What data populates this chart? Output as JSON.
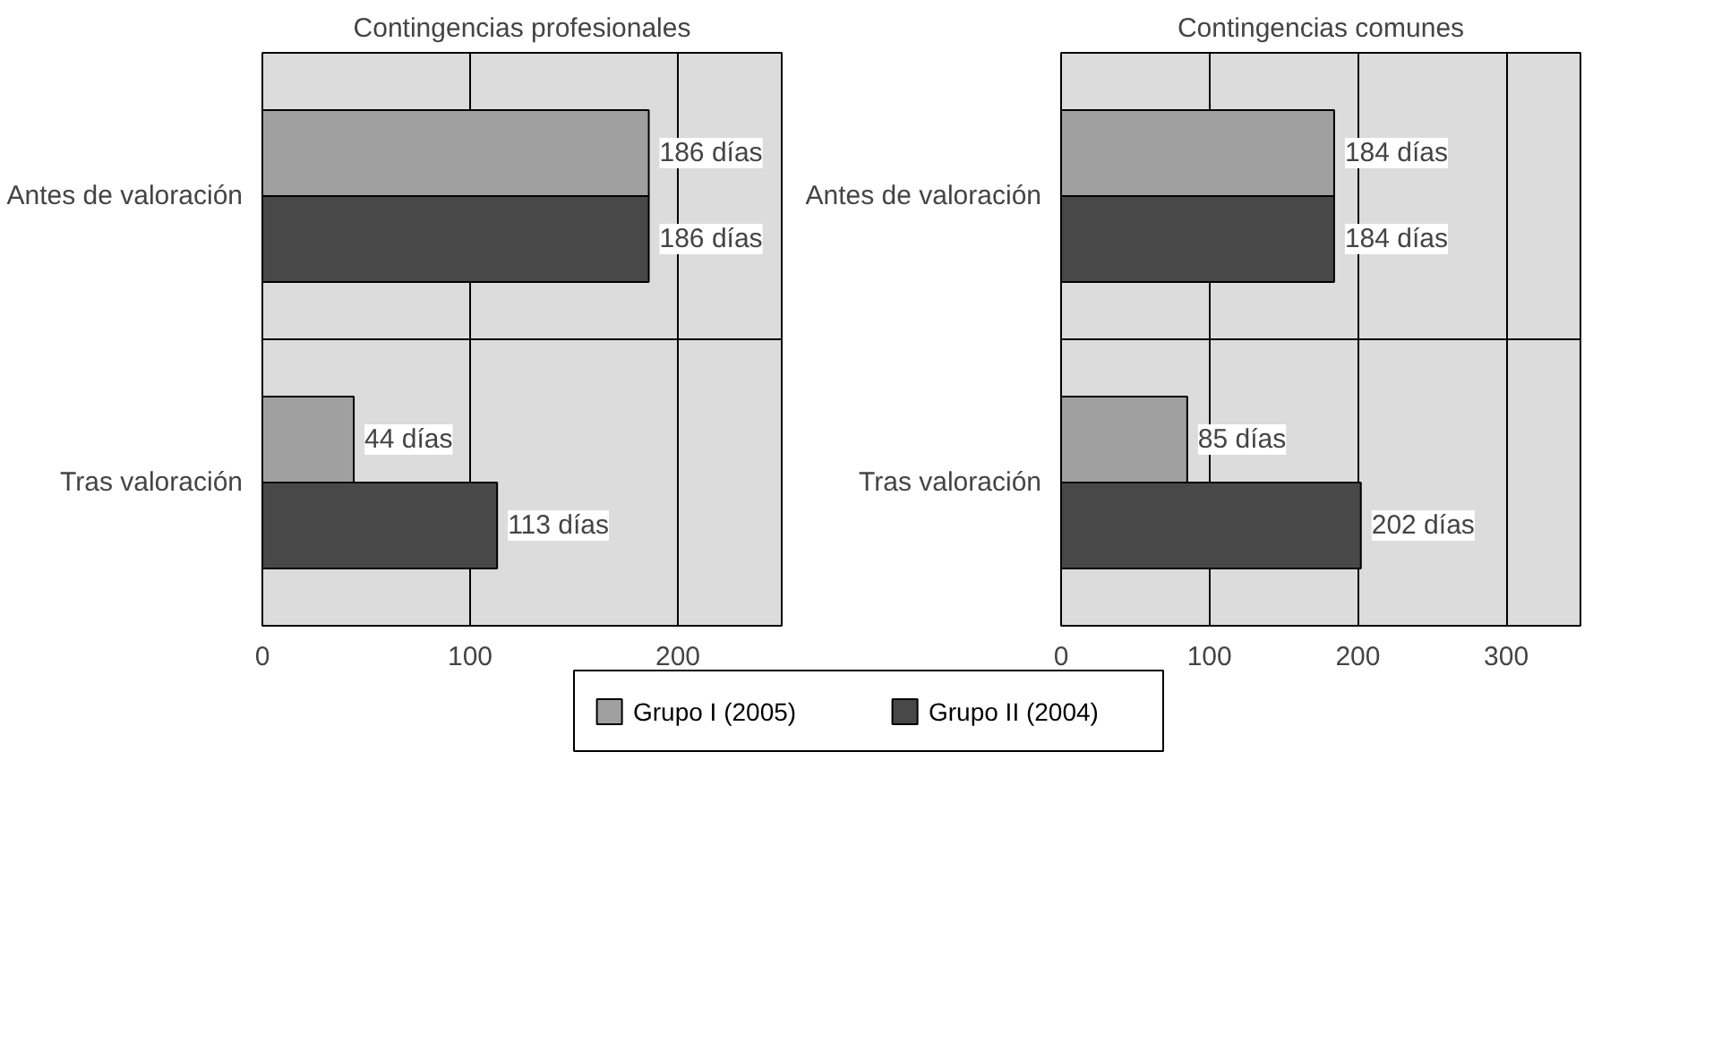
{
  "chart_data": [
    {
      "type": "bar",
      "orientation": "horizontal",
      "title": "Contingencias profesionales",
      "categories": [
        "Antes de valoración",
        "Tras valoración"
      ],
      "xlim": [
        0,
        250
      ],
      "xticks": [
        0,
        100,
        200
      ],
      "grid": "x",
      "series": [
        {
          "color": "#a0a0a0",
          "values": [
            186,
            44
          ],
          "value_labels": [
            "186 días",
            "44 días"
          ]
        },
        {
          "color": "#484848",
          "values": [
            186,
            113
          ],
          "value_labels": [
            "186 días",
            "113 días"
          ]
        }
      ]
    },
    {
      "type": "bar",
      "orientation": "horizontal",
      "title": "Contingencias comunes",
      "categories": [
        "Antes de valoración",
        "Tras valoración"
      ],
      "xlim": [
        0,
        350
      ],
      "xticks": [
        0,
        100,
        200,
        300
      ],
      "grid": "x",
      "legend": "bottom",
      "series": [
        {
          "name": "Grupo I (2005)",
          "color": "#a0a0a0",
          "values": [
            184,
            85
          ],
          "value_labels": [
            "184 días",
            "85 días"
          ]
        },
        {
          "name": "Grupo II (2004)",
          "color": "#484848",
          "values": [
            184,
            202
          ],
          "value_labels": [
            "184 días",
            "202 días"
          ]
        }
      ]
    }
  ]
}
